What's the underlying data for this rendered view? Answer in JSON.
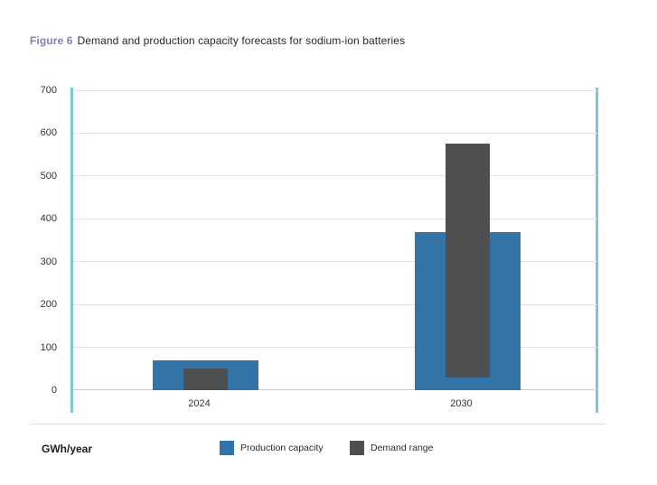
{
  "figure": {
    "label": "Figure 6",
    "title": "Demand and production capacity forecasts for sodium-ion batteries"
  },
  "axis": {
    "unit_label": "GWh/year"
  },
  "legend": {
    "items": [
      {
        "label": "Production capacity",
        "color": "#3274a8"
      },
      {
        "label": "Demand range",
        "color": "#4d4f51"
      }
    ]
  },
  "colors": {
    "production_bar": "#3274a8",
    "demand_bar": "#4d4f51",
    "axis_teal": "#7cc7d3",
    "figure_label": "#8181b3",
    "gridline": "#e4e4e4"
  },
  "chart_data": {
    "type": "bar",
    "title": "Figure 6 Demand and production capacity forecasts for sodium-ion batteries",
    "categories": [
      "2024",
      "2030"
    ],
    "series": [
      {
        "name": "Production capacity",
        "type": "bar",
        "values": [
          70,
          370
        ],
        "color": "#3274a8"
      },
      {
        "name": "Demand range",
        "type": "floating-bar",
        "ranges": [
          [
            0,
            50
          ],
          [
            30,
            575
          ]
        ],
        "color": "#4d4f51"
      }
    ],
    "xlabel": "",
    "ylabel": "GWh/year",
    "ylim": [
      0,
      700
    ],
    "yticks": [
      0,
      100,
      200,
      300,
      400,
      500,
      600,
      700
    ],
    "grid": true,
    "legend_position": "bottom"
  }
}
